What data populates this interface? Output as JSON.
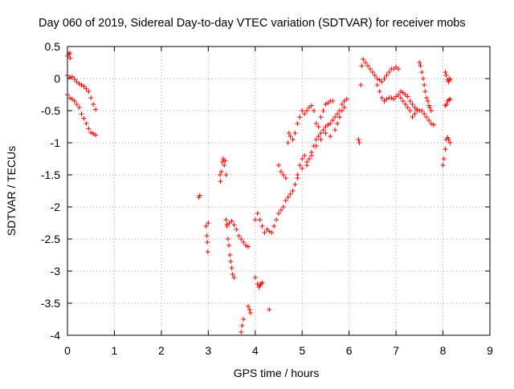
{
  "chart_data": {
    "type": "scatter",
    "title": "Day 060 of 2019, Sidereal Day-to-day VTEC variation (SDTVAR) for receiver mobs",
    "xlabel": "GPS time / hours",
    "ylabel": "SDTVAR / TECUs",
    "xlim": [
      0,
      9
    ],
    "ylim": [
      -4,
      0.5
    ],
    "xticks": [
      "0",
      "1",
      "2",
      "3",
      "4",
      "5",
      "6",
      "7",
      "8",
      "9"
    ],
    "yticks": [
      "0.5",
      "0",
      "-0.5",
      "-1",
      "-1.5",
      "-2",
      "-2.5",
      "-3",
      "-3.5",
      "-4"
    ],
    "grid": true,
    "marker": "+",
    "color": "#ff0000",
    "series": [
      {
        "name": "mobs",
        "points": [
          [
            0.0,
            0.35
          ],
          [
            0.03,
            0.38
          ],
          [
            0.05,
            0.4
          ],
          [
            0.06,
            0.32
          ],
          [
            0.0,
            0.05
          ],
          [
            0.05,
            0.02
          ],
          [
            0.1,
            0.03
          ],
          [
            0.15,
            -0.01
          ],
          [
            0.2,
            -0.05
          ],
          [
            0.25,
            -0.08
          ],
          [
            0.3,
            -0.1
          ],
          [
            0.35,
            -0.12
          ],
          [
            0.4,
            -0.16
          ],
          [
            0.45,
            -0.2
          ],
          [
            0.5,
            -0.3
          ],
          [
            0.55,
            -0.4
          ],
          [
            0.6,
            -0.48
          ],
          [
            0.0,
            -0.25
          ],
          [
            0.05,
            -0.3
          ],
          [
            0.1,
            -0.32
          ],
          [
            0.15,
            -0.35
          ],
          [
            0.2,
            -0.4
          ],
          [
            0.25,
            -0.45
          ],
          [
            0.3,
            -0.55
          ],
          [
            0.35,
            -0.62
          ],
          [
            0.4,
            -0.7
          ],
          [
            0.45,
            -0.78
          ],
          [
            0.5,
            -0.84
          ],
          [
            0.55,
            -0.86
          ],
          [
            0.6,
            -0.88
          ],
          [
            2.8,
            -1.85
          ],
          [
            2.82,
            -1.82
          ],
          [
            2.95,
            -2.3
          ],
          [
            2.97,
            -2.45
          ],
          [
            2.98,
            -2.55
          ],
          [
            2.99,
            -2.7
          ],
          [
            3.0,
            -2.25
          ],
          [
            3.25,
            -1.5
          ],
          [
            3.26,
            -1.6
          ],
          [
            3.28,
            -1.45
          ],
          [
            3.3,
            -1.3
          ],
          [
            3.32,
            -1.25
          ],
          [
            3.34,
            -1.35
          ],
          [
            3.36,
            -1.28
          ],
          [
            3.38,
            -1.5
          ],
          [
            3.38,
            -2.2
          ],
          [
            3.4,
            -2.3
          ],
          [
            3.42,
            -2.5
          ],
          [
            3.44,
            -2.6
          ],
          [
            3.46,
            -2.75
          ],
          [
            3.48,
            -2.85
          ],
          [
            3.5,
            -2.95
          ],
          [
            3.52,
            -3.05
          ],
          [
            3.55,
            -3.1
          ],
          [
            3.4,
            -2.27
          ],
          [
            3.45,
            -2.25
          ],
          [
            3.5,
            -2.22
          ],
          [
            3.55,
            -2.28
          ],
          [
            3.6,
            -2.35
          ],
          [
            3.65,
            -2.45
          ],
          [
            3.7,
            -2.5
          ],
          [
            3.75,
            -2.55
          ],
          [
            3.8,
            -2.6
          ],
          [
            3.85,
            -2.62
          ],
          [
            3.7,
            -3.95
          ],
          [
            3.72,
            -3.85
          ],
          [
            3.75,
            -3.75
          ],
          [
            3.85,
            -3.55
          ],
          [
            3.88,
            -3.6
          ],
          [
            3.9,
            -3.65
          ],
          [
            4.0,
            -3.1
          ],
          [
            4.05,
            -3.2
          ],
          [
            4.08,
            -3.25
          ],
          [
            4.1,
            -3.22
          ],
          [
            4.12,
            -3.2
          ],
          [
            4.15,
            -3.18
          ],
          [
            4.3,
            -3.6
          ],
          [
            4.0,
            -2.2
          ],
          [
            4.05,
            -2.1
          ],
          [
            4.1,
            -2.2
          ],
          [
            4.15,
            -2.3
          ],
          [
            4.2,
            -2.4
          ],
          [
            4.25,
            -2.35
          ],
          [
            4.3,
            -2.38
          ],
          [
            4.35,
            -2.4
          ],
          [
            4.4,
            -2.3
          ],
          [
            4.45,
            -2.2
          ],
          [
            4.5,
            -2.1
          ],
          [
            4.55,
            -2.05
          ],
          [
            4.6,
            -2.0
          ],
          [
            4.65,
            -1.9
          ],
          [
            4.7,
            -1.85
          ],
          [
            4.75,
            -1.8
          ],
          [
            4.8,
            -1.75
          ],
          [
            4.85,
            -1.65
          ],
          [
            4.9,
            -1.5
          ],
          [
            4.95,
            -1.35
          ],
          [
            5.0,
            -1.25
          ],
          [
            5.05,
            -1.2
          ],
          [
            5.1,
            -1.3
          ],
          [
            5.15,
            -1.25
          ],
          [
            5.2,
            -1.15
          ],
          [
            5.25,
            -1.05
          ],
          [
            5.3,
            -0.95
          ],
          [
            5.35,
            -0.9
          ],
          [
            5.4,
            -0.85
          ],
          [
            5.45,
            -0.8
          ],
          [
            5.5,
            -0.75
          ],
          [
            5.55,
            -0.72
          ],
          [
            5.6,
            -0.7
          ],
          [
            5.65,
            -0.65
          ],
          [
            5.7,
            -0.6
          ],
          [
            5.75,
            -0.55
          ],
          [
            5.8,
            -0.5
          ],
          [
            5.85,
            -0.4
          ],
          [
            5.9,
            -0.35
          ],
          [
            5.95,
            -0.32
          ],
          [
            4.5,
            -1.35
          ],
          [
            4.55,
            -1.45
          ],
          [
            4.6,
            -1.5
          ],
          [
            4.65,
            -1.55
          ],
          [
            4.7,
            -1.0
          ],
          [
            4.72,
            -0.85
          ],
          [
            4.75,
            -0.9
          ],
          [
            4.8,
            -0.95
          ],
          [
            4.85,
            -0.85
          ],
          [
            4.9,
            -0.7
          ],
          [
            4.95,
            -0.6
          ],
          [
            5.0,
            -0.5
          ],
          [
            5.05,
            -0.55
          ],
          [
            5.1,
            -0.5
          ],
          [
            5.15,
            -0.45
          ],
          [
            5.2,
            -0.42
          ],
          [
            5.25,
            -0.5
          ],
          [
            5.3,
            -0.7
          ],
          [
            5.35,
            -0.75
          ],
          [
            5.4,
            -0.6
          ],
          [
            5.45,
            -0.5
          ],
          [
            5.5,
            -0.4
          ],
          [
            5.55,
            -0.38
          ],
          [
            5.6,
            -0.35
          ],
          [
            5.65,
            -0.35
          ],
          [
            4.9,
            -1.55
          ],
          [
            5.0,
            -1.4
          ],
          [
            5.1,
            -1.35
          ],
          [
            5.2,
            -1.2
          ],
          [
            5.3,
            -1.05
          ],
          [
            5.4,
            -0.95
          ],
          [
            5.5,
            -0.85
          ],
          [
            5.6,
            -0.9
          ],
          [
            5.7,
            -0.8
          ],
          [
            5.75,
            -0.7
          ],
          [
            5.8,
            -0.6
          ],
          [
            5.85,
            -0.5
          ],
          [
            5.9,
            -0.45
          ],
          [
            6.2,
            -0.95
          ],
          [
            6.22,
            -1.0
          ],
          [
            6.25,
            -0.1
          ],
          [
            6.27,
            0.2
          ],
          [
            6.3,
            0.3
          ],
          [
            6.35,
            0.25
          ],
          [
            6.4,
            0.2
          ],
          [
            6.45,
            0.15
          ],
          [
            6.5,
            0.1
          ],
          [
            6.55,
            0.05
          ],
          [
            6.6,
            0.0
          ],
          [
            6.65,
            -0.02
          ],
          [
            6.7,
            -0.05
          ],
          [
            6.75,
            0.0
          ],
          [
            6.8,
            0.05
          ],
          [
            6.85,
            0.1
          ],
          [
            6.9,
            0.15
          ],
          [
            6.95,
            0.15
          ],
          [
            7.0,
            0.18
          ],
          [
            7.05,
            0.15
          ],
          [
            6.6,
            -0.1
          ],
          [
            6.65,
            -0.2
          ],
          [
            6.7,
            -0.3
          ],
          [
            6.75,
            -0.35
          ],
          [
            6.8,
            -0.32
          ],
          [
            6.85,
            -0.3
          ],
          [
            6.9,
            -0.3
          ],
          [
            6.95,
            -0.32
          ],
          [
            7.0,
            -0.28
          ],
          [
            7.05,
            -0.25
          ],
          [
            7.1,
            -0.3
          ],
          [
            7.15,
            -0.35
          ],
          [
            7.2,
            -0.4
          ],
          [
            7.25,
            -0.45
          ],
          [
            7.3,
            -0.5
          ],
          [
            7.35,
            -0.6
          ],
          [
            7.4,
            -0.55
          ],
          [
            7.45,
            -0.5
          ],
          [
            7.1,
            -0.2
          ],
          [
            7.15,
            -0.22
          ],
          [
            7.2,
            -0.25
          ],
          [
            7.25,
            -0.28
          ],
          [
            7.3,
            -0.35
          ],
          [
            7.35,
            -0.4
          ],
          [
            7.4,
            -0.45
          ],
          [
            7.45,
            -0.48
          ],
          [
            7.5,
            -0.5
          ],
          [
            7.55,
            -0.5
          ],
          [
            7.6,
            -0.55
          ],
          [
            7.65,
            -0.6
          ],
          [
            7.7,
            -0.65
          ],
          [
            7.75,
            -0.7
          ],
          [
            7.8,
            -0.72
          ],
          [
            7.5,
            0.25
          ],
          [
            7.52,
            0.2
          ],
          [
            7.55,
            0.1
          ],
          [
            7.58,
            0.0
          ],
          [
            7.6,
            -0.1
          ],
          [
            7.62,
            -0.2
          ],
          [
            7.65,
            -0.3
          ],
          [
            7.68,
            -0.35
          ],
          [
            7.7,
            -0.42
          ],
          [
            7.72,
            -0.45
          ],
          [
            7.75,
            -0.5
          ],
          [
            8.0,
            -1.35
          ],
          [
            8.02,
            -1.25
          ],
          [
            8.05,
            -1.1
          ],
          [
            8.07,
            -0.95
          ],
          [
            8.1,
            -0.92
          ],
          [
            8.12,
            -0.95
          ],
          [
            8.15,
            -1.0
          ],
          [
            8.05,
            0.1
          ],
          [
            8.07,
            0.05
          ],
          [
            8.1,
            -0.02
          ],
          [
            8.12,
            -0.05
          ],
          [
            8.14,
            0.0
          ],
          [
            8.15,
            -0.02
          ],
          [
            8.05,
            -0.42
          ],
          [
            8.08,
            -0.4
          ],
          [
            8.1,
            -0.35
          ],
          [
            8.13,
            -0.33
          ],
          [
            8.15,
            -0.32
          ]
        ]
      }
    ]
  }
}
